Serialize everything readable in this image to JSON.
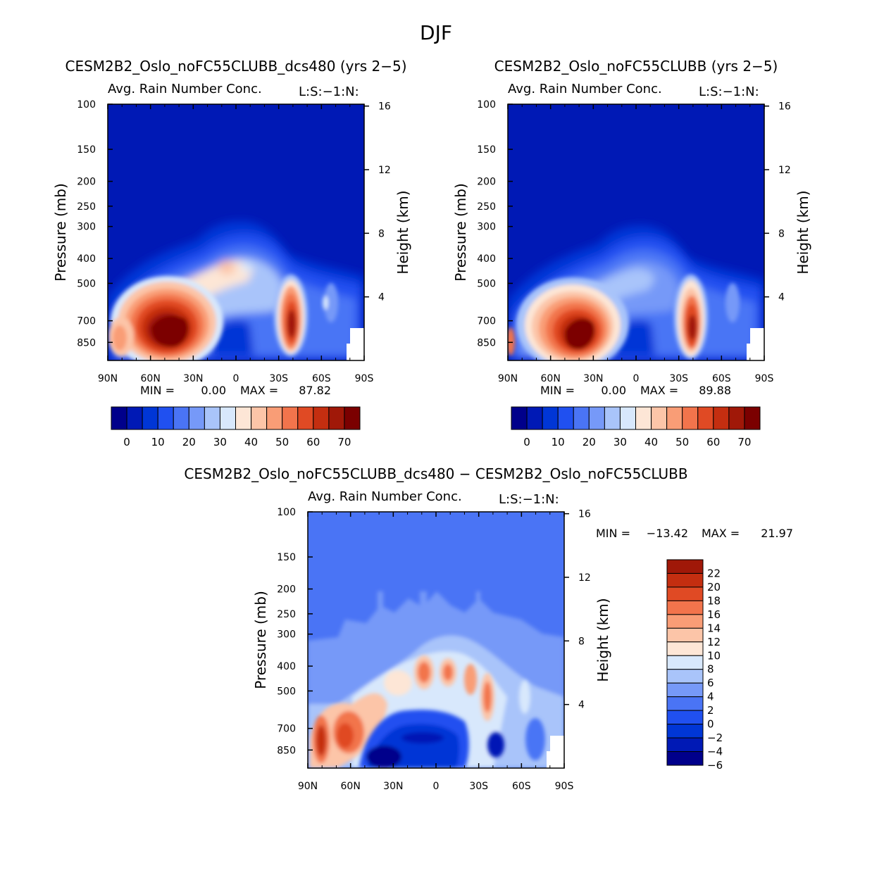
{
  "figure": {
    "title": "DJF"
  },
  "colors": {
    "scale_a": [
      "#00008b",
      "#0019b5",
      "#0036d6",
      "#2050f0",
      "#4a74f5",
      "#7699f8",
      "#a9c4fa",
      "#d8e8fc",
      "#fde6d6",
      "#fcc5a8",
      "#f99d76",
      "#f2744c",
      "#e04a24",
      "#c42e10",
      "#a01808",
      "#7b0000"
    ],
    "scale_diff": [
      "#00008b",
      "#0019b5",
      "#0036d6",
      "#2050f0",
      "#4a74f5",
      "#7699f8",
      "#a9c4fa",
      "#d8e8fc",
      "#fde6d6",
      "#fcc5a8",
      "#f99d76",
      "#f2744c",
      "#e04a24",
      "#c42e10",
      "#a01808"
    ],
    "diff_background": "#4a74f5"
  },
  "chart_data": [
    {
      "type": "heatmap",
      "title": "CESM2B2_Oslo_noFC55CLUBB_dcs480 (yrs 2−5)",
      "subtitle": "Avg. Rain Number Conc.",
      "units": "L:S:−1:N:",
      "xlabel": "",
      "ylabel": "Pressure (mb)",
      "ylabel_right": "Height (km)",
      "x_ticks": [
        "90N",
        "60N",
        "30N",
        "0",
        "30S",
        "60S",
        "90S"
      ],
      "y_ticks": [
        "100",
        "150",
        "200",
        "250",
        "300",
        "400",
        "500",
        "700",
        "850"
      ],
      "y_ticks_right": [
        "16",
        "12",
        "8",
        "4"
      ],
      "stats": {
        "min_label": "MIN =",
        "min": "0.00",
        "max_label": "MAX =",
        "max": "87.82"
      },
      "colorbar_ticks": [
        "0",
        "10",
        "20",
        "30",
        "40",
        "50",
        "60",
        "70"
      ],
      "maxima": [
        {
          "lat": 45,
          "p": 730,
          "value": 87.8
        },
        {
          "lat": -38,
          "p": 700,
          "value": 72
        }
      ]
    },
    {
      "type": "heatmap",
      "title": "CESM2B2_Oslo_noFC55CLUBB (yrs 2−5)",
      "subtitle": "Avg. Rain Number Conc.",
      "units": "L:S:−1:N:",
      "xlabel": "",
      "ylabel": "Pressure (mb)",
      "ylabel_right": "Height (km)",
      "x_ticks": [
        "90N",
        "60N",
        "30N",
        "0",
        "30S",
        "60S",
        "90S"
      ],
      "y_ticks": [
        "100",
        "150",
        "200",
        "250",
        "300",
        "400",
        "500",
        "700",
        "850"
      ],
      "y_ticks_right": [
        "16",
        "12",
        "8",
        "4"
      ],
      "stats": {
        "min_label": "MIN =",
        "min": "0.00",
        "max_label": "MAX =",
        "max": "89.88"
      },
      "colorbar_ticks": [
        "0",
        "10",
        "20",
        "30",
        "40",
        "50",
        "60",
        "70"
      ],
      "maxima": [
        {
          "lat": 45,
          "p": 750,
          "value": 89.9
        },
        {
          "lat": -38,
          "p": 720,
          "value": 70
        }
      ]
    },
    {
      "type": "heatmap",
      "title": "CESM2B2_Oslo_noFC55CLUBB_dcs480 − CESM2B2_Oslo_noFC55CLUBB",
      "subtitle": "Avg. Rain Number Conc.",
      "units": "L:S:−1:N:",
      "xlabel": "",
      "ylabel": "Pressure (mb)",
      "ylabel_right": "Height (km)",
      "x_ticks": [
        "90N",
        "60N",
        "30N",
        "0",
        "30S",
        "60S",
        "90S"
      ],
      "y_ticks": [
        "100",
        "150",
        "200",
        "250",
        "300",
        "400",
        "500",
        "700",
        "850"
      ],
      "y_ticks_right": [
        "16",
        "12",
        "8",
        "4"
      ],
      "stats": {
        "min_label": "MIN =",
        "min": "−13.42",
        "max_label": "MAX =",
        "max": "21.97"
      },
      "colorbar_ticks": [
        "22",
        "20",
        "18",
        "16",
        "14",
        "12",
        "10",
        "8",
        "6",
        "4",
        "2",
        "0",
        "−2",
        "−4",
        "−6"
      ],
      "maxima": [
        {
          "lat": 85,
          "p": 760,
          "value": 20
        },
        {
          "lat": 65,
          "p": 730,
          "value": 18
        },
        {
          "lat": 8,
          "p": 400,
          "value": 16
        },
        {
          "lat": -28,
          "p": 480,
          "value": 16
        },
        {
          "lat": 35,
          "p": 860,
          "value": -13.4
        }
      ]
    }
  ]
}
